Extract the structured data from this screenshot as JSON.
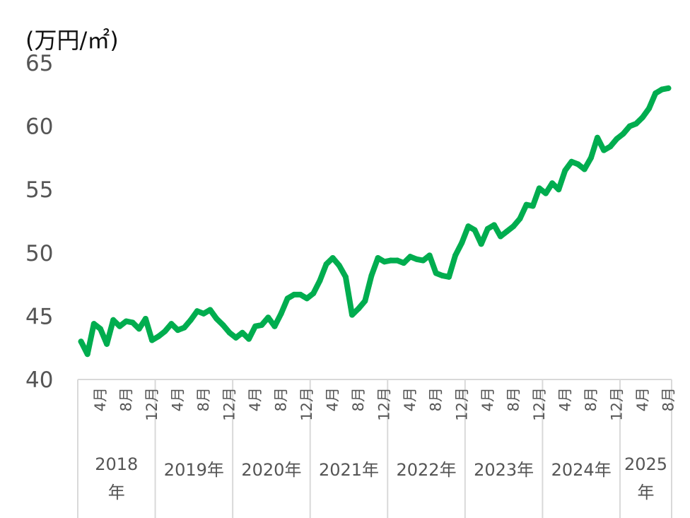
{
  "chart_data": {
    "type": "line",
    "unit_label": "(万円/㎡)",
    "ylim": [
      40,
      65
    ],
    "y_ticks": [
      "40",
      "45",
      "50",
      "55",
      "60",
      "65"
    ],
    "grid": false,
    "series": [
      {
        "color": "#00ad4f",
        "x": [
          "2018-01",
          "2018-02",
          "2018-03",
          "2018-04",
          "2018-05",
          "2018-06",
          "2018-07",
          "2018-08",
          "2018-09",
          "2018-10",
          "2018-11",
          "2018-12",
          "2019-01",
          "2019-02",
          "2019-03",
          "2019-04",
          "2019-05",
          "2019-06",
          "2019-07",
          "2019-08",
          "2019-09",
          "2019-10",
          "2019-11",
          "2019-12",
          "2020-01",
          "2020-02",
          "2020-03",
          "2020-04",
          "2020-05",
          "2020-06",
          "2020-07",
          "2020-08",
          "2020-09",
          "2020-10",
          "2020-11",
          "2020-12",
          "2021-01",
          "2021-02",
          "2021-03",
          "2021-04",
          "2021-05",
          "2021-06",
          "2021-07",
          "2021-08",
          "2021-09",
          "2021-10",
          "2021-11",
          "2021-12",
          "2022-01",
          "2022-02",
          "2022-03",
          "2022-04",
          "2022-05",
          "2022-06",
          "2022-07",
          "2022-08",
          "2022-09",
          "2022-10",
          "2022-11",
          "2022-12",
          "2023-01",
          "2023-02",
          "2023-03",
          "2023-04",
          "2023-05",
          "2023-06",
          "2023-07",
          "2023-08",
          "2023-09",
          "2023-10",
          "2023-11",
          "2023-12",
          "2024-01",
          "2024-02",
          "2024-03",
          "2024-04",
          "2024-05",
          "2024-06",
          "2024-07",
          "2024-08",
          "2024-09",
          "2024-10",
          "2024-11",
          "2024-12",
          "2025-01",
          "2025-02",
          "2025-03",
          "2025-04",
          "2025-05",
          "2025-06",
          "2025-07",
          "2025-08"
        ],
        "values": [
          43.0,
          42.0,
          44.4,
          44.0,
          42.8,
          44.7,
          44.2,
          44.6,
          44.5,
          44.0,
          44.8,
          43.1,
          43.4,
          43.8,
          44.4,
          43.9,
          44.1,
          44.7,
          45.4,
          45.2,
          45.5,
          44.8,
          44.3,
          43.7,
          43.3,
          43.7,
          43.2,
          44.2,
          44.3,
          44.9,
          44.2,
          45.2,
          46.4,
          46.7,
          46.7,
          46.4,
          46.8,
          47.8,
          49.1,
          49.6,
          49.0,
          48.1,
          45.1,
          45.6,
          46.2,
          48.2,
          49.6,
          49.3,
          49.4,
          49.4,
          49.2,
          49.7,
          49.5,
          49.4,
          49.8,
          48.4,
          48.2,
          48.1,
          49.8,
          50.8,
          52.1,
          51.8,
          50.7,
          51.9,
          52.2,
          51.3,
          51.7,
          52.1,
          52.7,
          53.8,
          53.7,
          55.1,
          54.7,
          55.5,
          55.0,
          56.5,
          57.2,
          57.0,
          56.6,
          57.5,
          59.1,
          58.1,
          58.4,
          59.0,
          59.4,
          60.0,
          60.2,
          60.7,
          61.4,
          62.6,
          62.9,
          63.0
        ]
      }
    ],
    "month_ticks": [
      "4月",
      "8月",
      "12月"
    ],
    "year_groups": [
      "2018\n年",
      "2019年",
      "2020年",
      "2021年",
      "2022年",
      "2023年",
      "2024年",
      "2025\n年"
    ]
  }
}
